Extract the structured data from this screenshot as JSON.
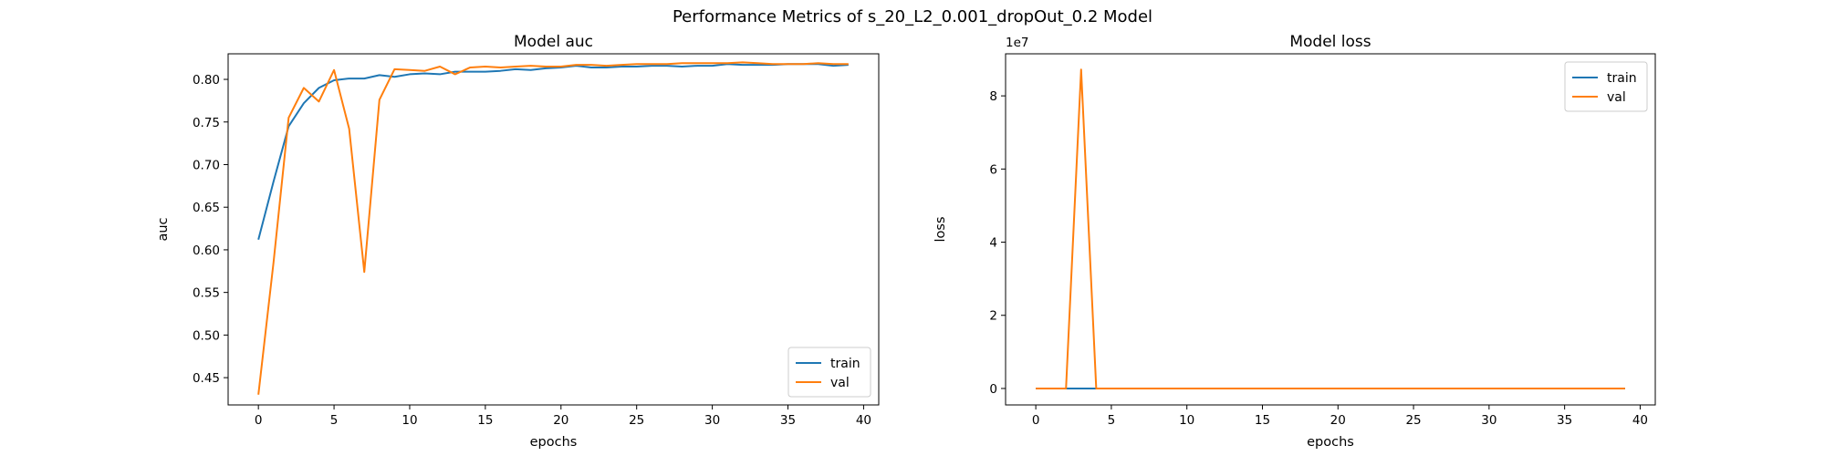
{
  "figure_title": "Performance Metrics of s_20_L2_0.001_dropOut_0.2 Model",
  "colors": {
    "train": "#1f77b4",
    "val": "#ff7f0e"
  },
  "chart_data": [
    {
      "type": "line",
      "title": "Model auc",
      "xlabel": "epochs",
      "ylabel": "auc",
      "xlim": [
        -2,
        41
      ],
      "ylim": [
        0.418,
        0.83
      ],
      "xticks": [
        0,
        5,
        10,
        15,
        20,
        25,
        30,
        35,
        40
      ],
      "yticks": [
        0.45,
        0.5,
        0.55,
        0.6,
        0.65,
        0.7,
        0.75,
        0.8
      ],
      "ytick_labels": [
        "0.45",
        "0.50",
        "0.55",
        "0.60",
        "0.65",
        "0.70",
        "0.75",
        "0.80"
      ],
      "legend": {
        "position": "lower-right",
        "entries": [
          "train",
          "val"
        ]
      },
      "offset_label": "",
      "grid": false,
      "series": [
        {
          "name": "train",
          "x": [
            0,
            1,
            2,
            3,
            4,
            5,
            6,
            7,
            8,
            9,
            10,
            11,
            12,
            13,
            14,
            15,
            16,
            17,
            18,
            19,
            20,
            21,
            22,
            23,
            24,
            25,
            26,
            27,
            28,
            29,
            30,
            31,
            32,
            33,
            34,
            35,
            36,
            37,
            38,
            39
          ],
          "values": [
            0.612,
            0.68,
            0.745,
            0.772,
            0.79,
            0.799,
            0.801,
            0.801,
            0.805,
            0.803,
            0.806,
            0.807,
            0.806,
            0.809,
            0.809,
            0.809,
            0.81,
            0.812,
            0.811,
            0.813,
            0.814,
            0.816,
            0.814,
            0.814,
            0.815,
            0.815,
            0.816,
            0.816,
            0.815,
            0.816,
            0.816,
            0.818,
            0.817,
            0.817,
            0.817,
            0.818,
            0.818,
            0.818,
            0.816,
            0.817
          ]
        },
        {
          "name": "val",
          "x": [
            0,
            1,
            2,
            3,
            4,
            5,
            6,
            7,
            8,
            9,
            10,
            11,
            12,
            13,
            14,
            15,
            16,
            17,
            18,
            19,
            20,
            21,
            22,
            23,
            24,
            25,
            26,
            27,
            28,
            29,
            30,
            31,
            32,
            33,
            34,
            35,
            36,
            37,
            38,
            39
          ],
          "values": [
            0.43,
            0.585,
            0.755,
            0.79,
            0.774,
            0.811,
            0.742,
            0.574,
            0.776,
            0.812,
            0.811,
            0.81,
            0.815,
            0.806,
            0.814,
            0.815,
            0.814,
            0.815,
            0.816,
            0.815,
            0.815,
            0.817,
            0.817,
            0.816,
            0.817,
            0.818,
            0.818,
            0.818,
            0.819,
            0.819,
            0.819,
            0.819,
            0.82,
            0.819,
            0.818,
            0.818,
            0.818,
            0.819,
            0.818,
            0.818
          ]
        }
      ]
    },
    {
      "type": "line",
      "title": "Model loss",
      "xlabel": "epochs",
      "ylabel": "loss",
      "xlim": [
        -2,
        41
      ],
      "ylim": [
        -4500000,
        91500000
      ],
      "xticks": [
        0,
        5,
        10,
        15,
        20,
        25,
        30,
        35,
        40
      ],
      "yticks": [
        0,
        20000000,
        40000000,
        60000000,
        80000000
      ],
      "ytick_labels": [
        "0",
        "2",
        "4",
        "6",
        "8"
      ],
      "legend": {
        "position": "upper-right",
        "entries": [
          "train",
          "val"
        ]
      },
      "offset_label": "1e7",
      "grid": false,
      "series": [
        {
          "name": "train",
          "x": [
            0,
            1,
            2,
            3,
            4,
            5,
            6,
            7,
            8,
            9,
            10,
            11,
            12,
            13,
            14,
            15,
            16,
            17,
            18,
            19,
            20,
            21,
            22,
            23,
            24,
            25,
            26,
            27,
            28,
            29,
            30,
            31,
            32,
            33,
            34,
            35,
            36,
            37,
            38,
            39
          ],
          "values": [
            1,
            1,
            1,
            1,
            1,
            1,
            1,
            1,
            1,
            1,
            1,
            1,
            1,
            1,
            1,
            1,
            1,
            1,
            1,
            1,
            1,
            1,
            1,
            1,
            1,
            1,
            1,
            1,
            1,
            1,
            1,
            1,
            1,
            1,
            1,
            1,
            1,
            1,
            1,
            1
          ]
        },
        {
          "name": "val",
          "x": [
            0,
            1,
            2,
            3,
            4,
            5,
            6,
            7,
            8,
            9,
            10,
            11,
            12,
            13,
            14,
            15,
            16,
            17,
            18,
            19,
            20,
            21,
            22,
            23,
            24,
            25,
            26,
            27,
            28,
            29,
            30,
            31,
            32,
            33,
            34,
            35,
            36,
            37,
            38,
            39
          ],
          "values": [
            1,
            1,
            1,
            87200000,
            1,
            1,
            1,
            1,
            1,
            1,
            1,
            1,
            1,
            1,
            1,
            1,
            1,
            1,
            1,
            1,
            1,
            1,
            1,
            1,
            1,
            1,
            1,
            1,
            1,
            1,
            1,
            1,
            1,
            1,
            1,
            1,
            1,
            1,
            1,
            1
          ]
        }
      ]
    }
  ]
}
